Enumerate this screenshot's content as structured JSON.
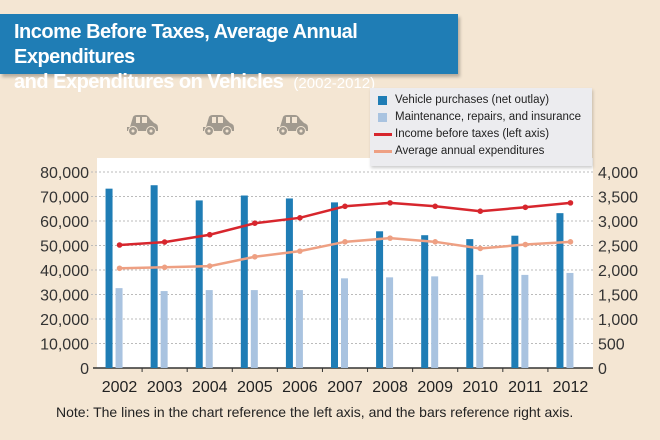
{
  "title": {
    "main_line1": "Income Before Taxes, Average Annual Expenditures",
    "main_line2": "and Expenditures on Vehicles",
    "years": "(2002-2012)"
  },
  "icons": [
    "car-icon",
    "car-icon",
    "car-icon"
  ],
  "note": "Note: The lines in the chart reference the left axis, and the bars reference right axis.",
  "colors": {
    "background": "#f4e6d3",
    "title_bar": "#1f7db5",
    "vehicle": "#1f7db5",
    "maintenance": "#a9c3e0",
    "income": "#d7262d",
    "expenditures": "#eea083"
  },
  "chart_data": {
    "type": "bar+line",
    "categories": [
      "2002",
      "2003",
      "2004",
      "2005",
      "2006",
      "2007",
      "2008",
      "2009",
      "2010",
      "2011",
      "2012"
    ],
    "left_axis": {
      "ylim": [
        0,
        80000
      ],
      "ticks": [
        "0",
        "10,000",
        "20,000",
        "30,000",
        "40,000",
        "50,000",
        "60,000",
        "70,000",
        "80,000"
      ]
    },
    "right_axis": {
      "ylim": [
        0,
        4000
      ],
      "ticks": [
        "0",
        "500",
        "1,000",
        "1,500",
        "2,000",
        "2,500",
        "3,000",
        "3,500",
        "4,000"
      ]
    },
    "series": [
      {
        "name": "Vehicle purchases (net outlay)",
        "type": "bar",
        "axis": "right",
        "values": [
          3660,
          3730,
          3420,
          3520,
          3460,
          3380,
          2790,
          2710,
          2630,
          2700,
          3160
        ]
      },
      {
        "name": "Maintenance, repairs, and insurance",
        "type": "bar",
        "axis": "right",
        "values": [
          1630,
          1570,
          1590,
          1590,
          1590,
          1830,
          1850,
          1870,
          1900,
          1900,
          1940
        ]
      },
      {
        "name": "Income before taxes (left axis)",
        "type": "line",
        "axis": "left",
        "values": [
          50200,
          51400,
          54400,
          59100,
          61300,
          66000,
          67400,
          66000,
          64000,
          65600,
          67400
        ]
      },
      {
        "name": "Average annual expenditures",
        "type": "line",
        "axis": "left",
        "values": [
          40700,
          41100,
          41600,
          45400,
          47700,
          51500,
          53000,
          51500,
          48800,
          50400,
          51500
        ]
      }
    ],
    "grid": true,
    "legend_placement": "top-right"
  }
}
